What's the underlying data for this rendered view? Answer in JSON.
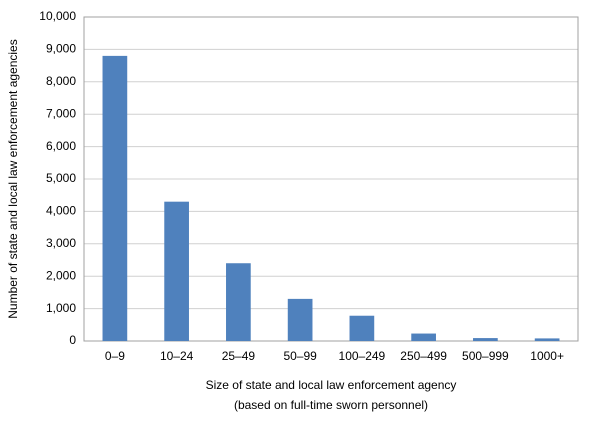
{
  "chart_data": {
    "type": "bar",
    "ylabel": "Number of state and local law enforcement agencies",
    "xlabel": [
      "Size of state and local law enforcement agency",
      "(based on full-time sworn personnel)"
    ],
    "categories": [
      "0–9",
      "10–24",
      "25–49",
      "50–99",
      "100–249",
      "250–499",
      "500–999",
      "1000+"
    ],
    "values": [
      8800,
      4300,
      2400,
      1300,
      780,
      230,
      90,
      80
    ],
    "color": "#4f81bd",
    "ylim": [
      0,
      10000
    ],
    "yticks": [
      0,
      {
        "value": 1000,
        "label": "1,000"
      },
      {
        "value": 2000,
        "label": "2,000"
      },
      {
        "value": 3000,
        "label": "3,000"
      },
      {
        "value": 4000,
        "label": "4,000"
      },
      {
        "value": 5000,
        "label": "5,000"
      },
      {
        "value": 6000,
        "label": "6,000"
      },
      {
        "value": 7000,
        "label": "7,000"
      },
      {
        "value": 8000,
        "label": "8,000"
      },
      {
        "value": 9000,
        "label": "9,000"
      },
      {
        "value": 10000,
        "label": "10,000"
      }
    ],
    "grid": true
  }
}
